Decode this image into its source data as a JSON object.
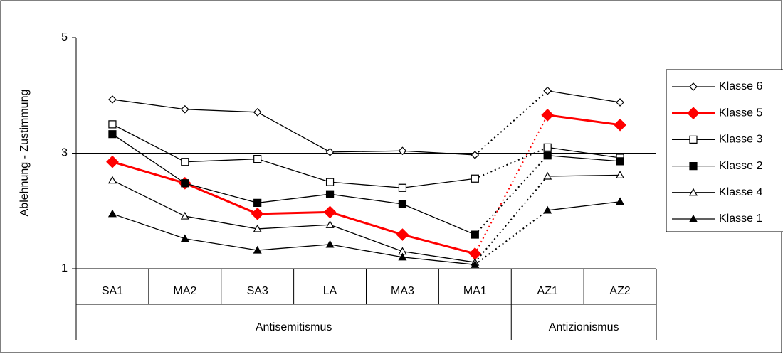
{
  "chart_data": {
    "type": "line",
    "y_axis_label": "Ablehnung - Zustimmung",
    "categories": [
      "SA1",
      "MA2",
      "SA3",
      "LA",
      "MA3",
      "MA1",
      "AZ1",
      "AZ2"
    ],
    "category_groups": [
      "Antisemitismus",
      "Antisemitismus",
      "Antisemitismus",
      "Antisemitismus",
      "Antisemitismus",
      "Antisemitismus",
      "Antizionismus",
      "Antizionismus"
    ],
    "ylim": [
      1,
      5
    ],
    "yticks": [
      1,
      3,
      5
    ],
    "series": [
      {
        "name": "Klasse 6",
        "color": "#000000",
        "marker": "diamond",
        "filled": false,
        "values": [
          3.93,
          3.76,
          3.71,
          3.02,
          3.04,
          2.97,
          4.08,
          3.88
        ]
      },
      {
        "name": "Klasse 5",
        "color": "#ff0000",
        "marker": "diamond",
        "filled": true,
        "values": [
          2.85,
          2.48,
          1.95,
          1.98,
          1.59,
          1.26,
          3.66,
          3.49
        ]
      },
      {
        "name": "Klasse 3",
        "color": "#000000",
        "marker": "square",
        "filled": false,
        "values": [
          3.5,
          2.85,
          2.9,
          2.5,
          2.4,
          2.56,
          3.1,
          2.92
        ]
      },
      {
        "name": "Klasse 2",
        "color": "#000000",
        "marker": "square",
        "filled": true,
        "values": [
          3.33,
          2.48,
          2.14,
          2.29,
          2.12,
          1.59,
          2.96,
          2.86
        ]
      },
      {
        "name": "Klasse 4",
        "color": "#000000",
        "marker": "triangle",
        "filled": false,
        "values": [
          2.53,
          1.91,
          1.69,
          1.76,
          1.3,
          1.11,
          2.6,
          2.62
        ]
      },
      {
        "name": "Klasse 1",
        "color": "#000000",
        "marker": "triangle",
        "filled": true,
        "values": [
          1.95,
          1.52,
          1.32,
          1.42,
          1.2,
          1.07,
          2.01,
          2.16
        ]
      }
    ]
  }
}
